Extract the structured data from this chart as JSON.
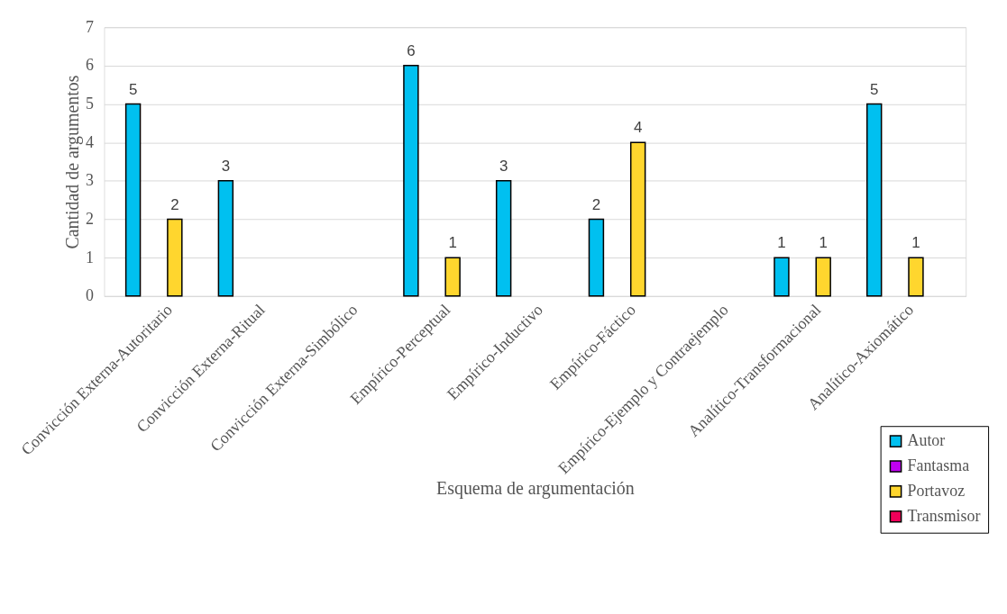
{
  "chart_data": {
    "type": "bar",
    "xlabel": "Esquema de argumentación",
    "ylabel": "Cantidad de argumentos",
    "categories": [
      "Convicción Externa-Autoritario",
      "Convicción Externa-Ritual",
      "Convicción Externa-Simbólico",
      "Empírico-Perceptual",
      "Empírico-Inductivo",
      "Empírico-Fáctico",
      "Empírico-Ejemplo y Contraejemplo",
      "Analítico-Transformacional",
      "Analítico-Axiomático"
    ],
    "series": [
      {
        "name": "Autor",
        "color": "#00c0f0",
        "values": [
          5,
          3,
          null,
          6,
          3,
          2,
          null,
          1,
          5
        ]
      },
      {
        "name": "Fantasma",
        "color": "#c000f0",
        "values": [
          null,
          null,
          null,
          null,
          null,
          null,
          null,
          null,
          null
        ]
      },
      {
        "name": "Portavoz",
        "color": "#ffd62e",
        "values": [
          2,
          null,
          null,
          1,
          null,
          4,
          null,
          1,
          1
        ]
      },
      {
        "name": "Transmisor",
        "color": "#f0005a",
        "values": [
          null,
          null,
          null,
          null,
          null,
          null,
          null,
          null,
          null
        ]
      }
    ],
    "ylim": [
      0,
      7
    ],
    "yticks": [
      0,
      1,
      2,
      3,
      4,
      5,
      6,
      7
    ],
    "grid": "y",
    "legend": "bottom right",
    "data_labels": true
  }
}
